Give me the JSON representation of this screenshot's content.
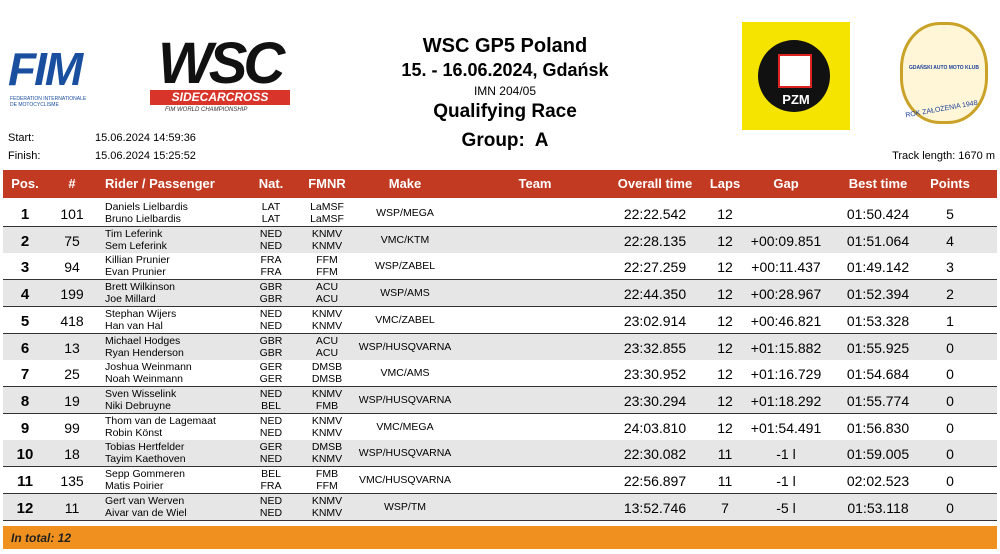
{
  "header": {
    "fim": "FIM",
    "fim_sub": "FEDERATION INTERNATIONALE DE MOTOCYCLISME",
    "wsc": "WSC",
    "wsc_bar": "SIDECARCROSS",
    "wsc_sub": "FIM WORLD CHAMPIONSHIP",
    "title": "WSC GP5 Poland",
    "date": "15. - 16.06.2024, Gdańsk",
    "imn": "IMN 204/05",
    "race": "Qualifying Race",
    "group": "Group:  A",
    "pzm": "PZM",
    "club": "GDAŃSKI AUTO MOTO KLUB",
    "club_year": "ROK ZAŁOŻENIA 1948"
  },
  "info": {
    "start_label": "Start:",
    "start": "15.06.2024 14:59:36",
    "finish_label": "Finish:",
    "finish": "15.06.2024 15:25:52",
    "track": "Track length: 1670 m"
  },
  "table": {
    "columns": [
      "Pos.",
      "#",
      "Rider / Passenger",
      "Nat.",
      "FMNR",
      "Make",
      "Team",
      "Overall time",
      "Laps",
      "Gap",
      "Best time",
      "Points"
    ],
    "rows": [
      {
        "pos": "1",
        "num": "101",
        "rider": "Daniels Lielbardis",
        "passenger": "Bruno Lielbardis",
        "nat1": "LAT",
        "nat2": "LAT",
        "fmnr1": "LaMSF",
        "fmnr2": "LaMSF",
        "make": "WSP/MEGA",
        "time": "22:22.542",
        "laps": "12",
        "best": "01:50.424",
        "points": "5"
      },
      {
        "pos": "2",
        "num": "75",
        "rider": "Tim Leferink",
        "passenger": "Sem Leferink",
        "nat1": "NED",
        "nat2": "NED",
        "fmnr1": "KNMV",
        "fmnr2": "KNMV",
        "make": "VMC/KTM",
        "time": "22:28.135",
        "laps": "12",
        "gap": "+00:09.851",
        "best": "01:51.064",
        "points": "4"
      },
      {
        "pos": "3",
        "num": "94",
        "rider": "Killian Prunier",
        "passenger": "Evan Prunier",
        "nat1": "FRA",
        "nat2": "FRA",
        "fmnr1": "FFM",
        "fmnr2": "FFM",
        "make": "WSP/ZABEL",
        "time": "22:27.259",
        "laps": "12",
        "gap": "+00:11.437",
        "best": "01:49.142",
        "points": "3"
      },
      {
        "pos": "4",
        "num": "199",
        "rider": "Brett Wilkinson",
        "passenger": "Joe Millard",
        "nat1": "GBR",
        "nat2": "GBR",
        "fmnr1": "ACU",
        "fmnr2": "ACU",
        "make": "WSP/AMS",
        "time": "22:44.350",
        "laps": "12",
        "gap": "+00:28.967",
        "best": "01:52.394",
        "points": "2"
      },
      {
        "pos": "5",
        "num": "418",
        "rider": "Stephan Wijers",
        "passenger": "Han van Hal",
        "nat1": "NED",
        "nat2": "NED",
        "fmnr1": "KNMV",
        "fmnr2": "KNMV",
        "make": "VMC/ZABEL",
        "time": "23:02.914",
        "laps": "12",
        "gap": "+00:46.821",
        "best": "01:53.328",
        "points": "1"
      },
      {
        "pos": "6",
        "num": "13",
        "rider": "Michael Hodges",
        "passenger": "Ryan Henderson",
        "nat1": "GBR",
        "nat2": "GBR",
        "fmnr1": "ACU",
        "fmnr2": "ACU",
        "make": "WSP/HUSQVARNA",
        "time": "23:32.855",
        "laps": "12",
        "gap": "+01:15.882",
        "best": "01:55.925",
        "points": "0"
      },
      {
        "pos": "7",
        "num": "25",
        "rider": "Joshua Weinmann",
        "passenger": "Noah Weinmann",
        "nat1": "GER",
        "nat2": "GER",
        "fmnr1": "DMSB",
        "fmnr2": "DMSB",
        "make": "VMC/AMS",
        "time": "23:30.952",
        "laps": "12",
        "gap": "+01:16.729",
        "best": "01:54.684",
        "points": "0"
      },
      {
        "pos": "8",
        "num": "19",
        "rider": "Sven Wisselink",
        "passenger": "Niki Debruyne",
        "nat1": "NED",
        "nat2": "BEL",
        "fmnr1": "KNMV",
        "fmnr2": "FMB",
        "make": "WSP/HUSQVARNA",
        "time": "23:30.294",
        "laps": "12",
        "gap": "+01:18.292",
        "best": "01:55.774",
        "points": "0"
      },
      {
        "pos": "9",
        "num": "99",
        "rider": "Thom van de Lagemaat",
        "passenger": "Robin  Könst",
        "nat1": "NED",
        "nat2": "NED",
        "fmnr1": "KNMV",
        "fmnr2": "KNMV",
        "make": "VMC/MEGA",
        "time": "24:03.810",
        "laps": "12",
        "gap": "+01:54.491",
        "best": "01:56.830",
        "points": "0"
      },
      {
        "pos": "10",
        "num": "18",
        "rider": "Tobias Hertfelder",
        "passenger": "Tayim Kaethoven",
        "nat1": "GER",
        "nat2": "NED",
        "fmnr1": "DMSB",
        "fmnr2": "KNMV",
        "make": "WSP/HUSQVARNA",
        "time": "22:30.082",
        "laps": "11",
        "gap": "-1 l",
        "best": "01:59.005",
        "points": "0"
      },
      {
        "pos": "11",
        "num": "135",
        "rider": "Sepp Gommeren",
        "passenger": "Matis Poirier",
        "nat1": "BEL",
        "nat2": "FRA",
        "fmnr1": "FMB",
        "fmnr2": "FFM",
        "make": "VMC/HUSQVARNA",
        "time": "22:56.897",
        "laps": "11",
        "gap": "-1 l",
        "best": "02:02.523",
        "points": "0"
      },
      {
        "pos": "12",
        "num": "11",
        "rider": "Gert van Werven",
        "passenger": "Aivar van de Wiel",
        "nat1": "NED",
        "nat2": "NED",
        "fmnr1": "KNMV",
        "fmnr2": "KNMV",
        "make": "WSP/TM",
        "time": "13:52.746",
        "laps": "7",
        "gap": "-5 l",
        "best": "01:53.118",
        "points": "0"
      }
    ],
    "footer": "In total: 12"
  }
}
